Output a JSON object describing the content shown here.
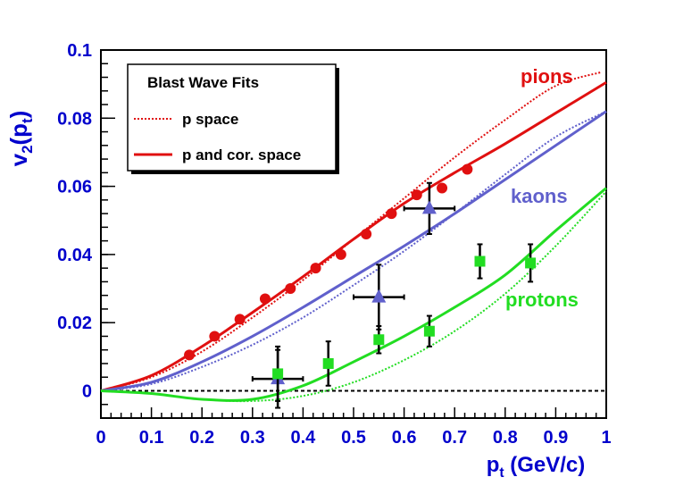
{
  "chart_data": {
    "type": "scatter",
    "title": "",
    "xlabel": "p_t (GeV/c)",
    "ylabel": "v_2(p_t)",
    "xlim": [
      0,
      1
    ],
    "ylim": [
      -0.008,
      0.1
    ],
    "x_ticks": [
      "0",
      "0.1",
      "0.2",
      "0.3",
      "0.4",
      "0.5",
      "0.6",
      "0.7",
      "0.8",
      "0.9",
      "1"
    ],
    "y_ticks": [
      "0",
      "0.02",
      "0.04",
      "0.06",
      "0.08",
      "0.1"
    ],
    "grid": false,
    "axis_color": "#0000cc",
    "legend": {
      "title": "Blast Wave Fits",
      "position": "top-left",
      "entries": [
        {
          "label": "p space",
          "style": "dotted"
        },
        {
          "label": "p and cor. space",
          "style": "solid"
        }
      ]
    },
    "series": [
      {
        "name": "pions",
        "color": "#e01010",
        "marker": "circle",
        "points": [
          {
            "x": 0.175,
            "y": 0.0105
          },
          {
            "x": 0.225,
            "y": 0.016
          },
          {
            "x": 0.275,
            "y": 0.021
          },
          {
            "x": 0.325,
            "y": 0.027
          },
          {
            "x": 0.375,
            "y": 0.03
          },
          {
            "x": 0.425,
            "y": 0.036
          },
          {
            "x": 0.475,
            "y": 0.04
          },
          {
            "x": 0.525,
            "y": 0.046
          },
          {
            "x": 0.575,
            "y": 0.052
          },
          {
            "x": 0.625,
            "y": 0.0575
          },
          {
            "x": 0.675,
            "y": 0.0595
          },
          {
            "x": 0.725,
            "y": 0.065
          }
        ],
        "fit_solid": {
          "x": [
            0,
            0.1,
            0.2,
            0.3,
            0.4,
            0.5,
            0.6,
            0.7,
            0.8,
            0.9,
            1.0
          ],
          "y": [
            0,
            0.0045,
            0.013,
            0.023,
            0.0335,
            0.0445,
            0.055,
            0.064,
            0.0725,
            0.0815,
            0.0905
          ]
        },
        "fit_dotted": {
          "x": [
            0,
            0.1,
            0.2,
            0.3,
            0.4,
            0.5,
            0.6,
            0.7,
            0.8,
            0.9,
            0.99
          ],
          "y": [
            0,
            0.004,
            0.0115,
            0.0215,
            0.0325,
            0.0445,
            0.0565,
            0.0685,
            0.0795,
            0.0895,
            0.0935
          ]
        }
      },
      {
        "name": "kaons",
        "color": "#6060cc",
        "marker": "triangle",
        "points": [
          {
            "x": 0.35,
            "y": 0.0035,
            "xerr": 0.05,
            "yerr": 0.0085
          },
          {
            "x": 0.55,
            "y": 0.0275,
            "xerr": 0.05,
            "yerr": 0.0095
          },
          {
            "x": 0.65,
            "y": 0.0535,
            "xerr": 0.05,
            "yerr": 0.0075
          }
        ],
        "fit_solid": {
          "x": [
            0,
            0.1,
            0.2,
            0.3,
            0.4,
            0.5,
            0.6,
            0.7,
            0.8,
            0.9,
            1.0
          ],
          "y": [
            0,
            0.0025,
            0.0085,
            0.016,
            0.0245,
            0.0335,
            0.0425,
            0.052,
            0.062,
            0.072,
            0.082
          ]
        },
        "fit_dotted": {
          "x": [
            0,
            0.1,
            0.2,
            0.3,
            0.4,
            0.5,
            0.6,
            0.7,
            0.8,
            0.9,
            1.0
          ],
          "y": [
            0,
            0.002,
            0.007,
            0.0135,
            0.0215,
            0.031,
            0.041,
            0.052,
            0.0635,
            0.0745,
            0.082
          ]
        }
      },
      {
        "name": "protons",
        "color": "#22dd22",
        "marker": "square",
        "points": [
          {
            "x": 0.35,
            "y": 0.005,
            "yerr": 0.008
          },
          {
            "x": 0.45,
            "y": 0.008,
            "yerr": 0.0065
          },
          {
            "x": 0.55,
            "y": 0.015,
            "yerr": 0.004
          },
          {
            "x": 0.65,
            "y": 0.0175,
            "yerr": 0.0045
          },
          {
            "x": 0.75,
            "y": 0.038,
            "yerr": 0.005
          },
          {
            "x": 0.85,
            "y": 0.0375,
            "yerr": 0.0055
          }
        ],
        "fit_solid": {
          "x": [
            0,
            0.1,
            0.2,
            0.3,
            0.4,
            0.5,
            0.6,
            0.7,
            0.8,
            0.9,
            1.0
          ],
          "y": [
            0,
            -0.0008,
            -0.0025,
            -0.0025,
            0.0015,
            0.0085,
            0.016,
            0.0245,
            0.034,
            0.047,
            0.0595
          ]
        },
        "fit_dotted": {
          "x": [
            0,
            0.1,
            0.2,
            0.3,
            0.4,
            0.5,
            0.6,
            0.7,
            0.8,
            0.9,
            1.0
          ],
          "y": [
            0,
            -0.0008,
            -0.0025,
            -0.003,
            -0.0015,
            0.0025,
            0.009,
            0.0175,
            0.0285,
            0.0425,
            0.0585
          ]
        }
      }
    ],
    "reference_line": {
      "y": 0,
      "style": "dashed"
    }
  }
}
